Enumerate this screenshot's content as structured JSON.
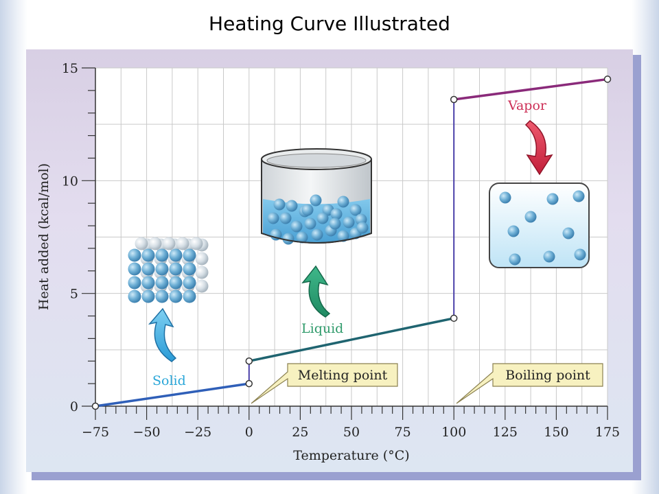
{
  "title": "Heating Curve Illustrated",
  "chart_data": {
    "type": "line",
    "xlabel": "Temperature (°C)",
    "ylabel": "Heat added (kcal/mol)",
    "xlim": [
      -75,
      175
    ],
    "ylim": [
      0,
      15
    ],
    "x_ticks": [
      -75,
      -50,
      -25,
      0,
      25,
      50,
      75,
      100,
      125,
      150,
      175
    ],
    "x_tick_labels": [
      "−75",
      "−50",
      "−25",
      "0",
      "25",
      "50",
      "75",
      "100",
      "125",
      "150",
      "175"
    ],
    "y_ticks": [
      0,
      5,
      10,
      15
    ],
    "grid": true,
    "segments": [
      {
        "phase": "Solid",
        "color": "#2f5fb8",
        "x": [
          -75,
          0
        ],
        "y": [
          0,
          1
        ]
      },
      {
        "phase": "Melting",
        "color": "#4a3fa8",
        "x": [
          0,
          0
        ],
        "y": [
          1,
          2
        ]
      },
      {
        "phase": "Liquid",
        "color": "#1f6470",
        "x": [
          0,
          100
        ],
        "y": [
          2,
          3.9
        ]
      },
      {
        "phase": "Boiling",
        "color": "#4a3fa8",
        "x": [
          100,
          100
        ],
        "y": [
          3.9,
          13.6
        ]
      },
      {
        "phase": "Vapor",
        "color": "#8a2a7a",
        "x": [
          100,
          175
        ],
        "y": [
          13.6,
          14.5
        ]
      }
    ],
    "points": [
      [
        -75,
        0
      ],
      [
        0,
        1
      ],
      [
        0,
        2
      ],
      [
        100,
        3.9
      ],
      [
        100,
        13.6
      ],
      [
        175,
        14.5
      ]
    ],
    "annotations": {
      "solid": "Solid",
      "liquid": "Liquid",
      "vapor": "Vapor",
      "melting_point": "Melting point",
      "boiling_point": "Boiling point"
    }
  },
  "colors": {
    "solid_label": "#29a6d8",
    "liquid_label": "#2e9a6a",
    "vapor_label": "#cc2e55",
    "callout_fill": "#f7f1c0",
    "plot_bg": "#ffffff"
  }
}
